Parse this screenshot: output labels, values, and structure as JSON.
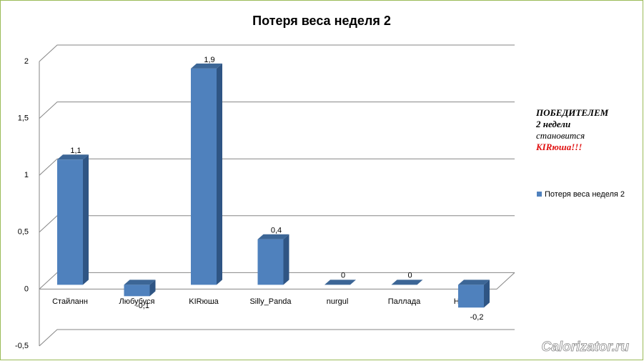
{
  "chart_data": {
    "type": "bar",
    "title": "Потеря веса неделя 2",
    "categories": [
      "Стайланн",
      "Любубуся",
      "KIRюша",
      "Silly_Panda",
      "nurgul",
      "Паллада",
      "Наталика"
    ],
    "series": [
      {
        "name": "Потеря веса неделя 2",
        "color": "#4f81bd",
        "values": [
          1.1,
          -0.1,
          1.9,
          0.4,
          0,
          0,
          -0.2
        ],
        "value_labels": [
          "1,1",
          "-0,1",
          "1,9",
          "0,4",
          "0",
          "0",
          "-0,2"
        ]
      }
    ],
    "ylim": [
      -0.5,
      2
    ],
    "yticks": [
      {
        "value": -0.5,
        "label": "-0,5"
      },
      0,
      {
        "value": 0.5,
        "label": "0,5"
      },
      1,
      {
        "value": 1.5,
        "label": "1,5"
      },
      2
    ],
    "grid": true,
    "legend": "right",
    "annotation": [
      "ПОБЕДИТЕЛЕМ",
      "2 недели",
      "становится",
      "KIRюша!!!"
    ],
    "watermark": "Calorizator.ru"
  }
}
